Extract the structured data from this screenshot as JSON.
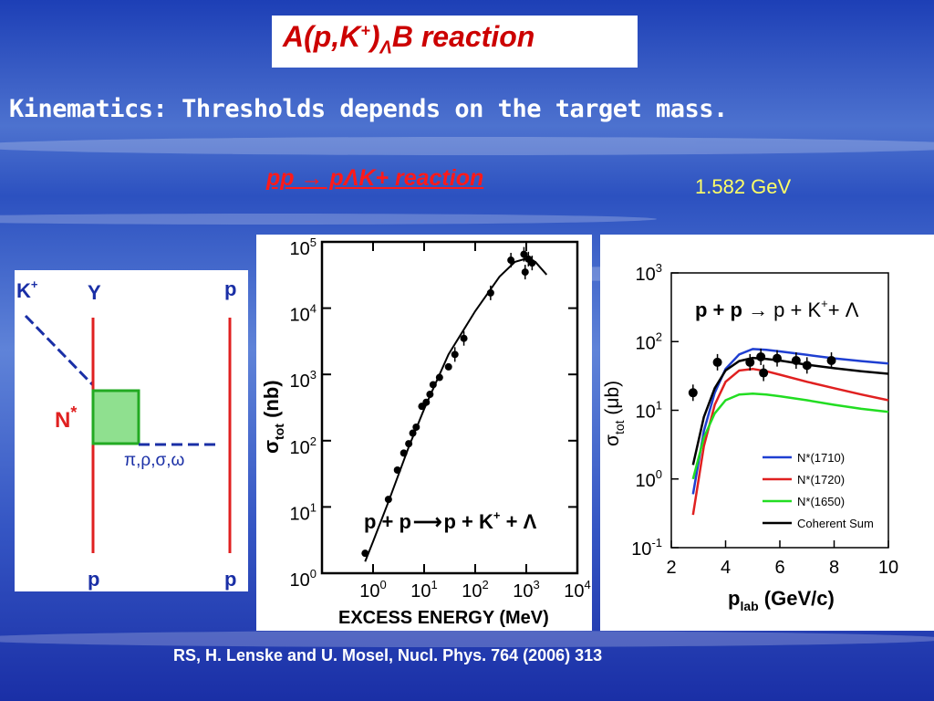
{
  "slide": {
    "title_main": "A(p,K",
    "title_sup": "+",
    "title_close": ")",
    "title_sub": "Λ",
    "title_end": "B reaction",
    "subtitle": "Kinematics: Thresholds  depends on  the target mass.",
    "reaction_label": "pp  → pΛK+   reaction",
    "threshold_energy": "1.582 GeV",
    "citation": "RS, H. Lenske and U. Mosel, Nucl. Phys. 764 (2006) 313"
  },
  "diagram": {
    "kplus": "K",
    "kplus_sup": "+",
    "y_label": "Y",
    "p_top_right": "p",
    "nstar": "N",
    "nstar_sup": "*",
    "mesons": "π,ρ,σ,ω",
    "p_bottom_left": "p",
    "p_bottom_right": "p"
  },
  "chart_data": [
    {
      "type": "scatter",
      "scale": "log-log",
      "annotation": "p + p→p + K+ + Λ",
      "xlabel": "EXCESS ENERGY (MeV)",
      "ylabel": "σtot (nb)",
      "xlim": [
        0.1,
        10000
      ],
      "ylim": [
        1,
        100000
      ],
      "x_ticks": [
        "10^0",
        "10^1",
        "10^2",
        "10^3",
        "10^4"
      ],
      "y_ticks": [
        "10^0",
        "10^1",
        "10^2",
        "10^3",
        "10^4",
        "10^5"
      ],
      "points": [
        {
          "x": 0.7,
          "y": 2.0
        },
        {
          "x": 2.0,
          "y": 13
        },
        {
          "x": 3.0,
          "y": 36
        },
        {
          "x": 4.0,
          "y": 65
        },
        {
          "x": 5.0,
          "y": 90
        },
        {
          "x": 6.0,
          "y": 130
        },
        {
          "x": 7.0,
          "y": 160
        },
        {
          "x": 9.0,
          "y": 330
        },
        {
          "x": 11,
          "y": 380
        },
        {
          "x": 13,
          "y": 500
        },
        {
          "x": 15,
          "y": 700
        },
        {
          "x": 20,
          "y": 900
        },
        {
          "x": 30,
          "y": 1300
        },
        {
          "x": 40,
          "y": 2000
        },
        {
          "x": 60,
          "y": 3500
        },
        {
          "x": 200,
          "y": 17000
        },
        {
          "x": 500,
          "y": 53000
        },
        {
          "x": 900,
          "y": 65000
        },
        {
          "x": 950,
          "y": 35000
        },
        {
          "x": 1100,
          "y": 55000
        },
        {
          "x": 1300,
          "y": 48000
        }
      ],
      "fit_curve": [
        {
          "x": 0.7,
          "y": 1.5
        },
        {
          "x": 1,
          "y": 3
        },
        {
          "x": 2,
          "y": 12
        },
        {
          "x": 5,
          "y": 80
        },
        {
          "x": 10,
          "y": 300
        },
        {
          "x": 30,
          "y": 2000
        },
        {
          "x": 100,
          "y": 9000
        },
        {
          "x": 300,
          "y": 30000
        },
        {
          "x": 600,
          "y": 50000
        },
        {
          "x": 1000,
          "y": 56000
        },
        {
          "x": 1500,
          "y": 50000
        },
        {
          "x": 2500,
          "y": 32000
        }
      ]
    },
    {
      "type": "line",
      "scale": "x-linear-y-log",
      "annotation": "p + p → p + K+ + Λ",
      "xlabel": "plab (GeV/c)",
      "ylabel": "σtot (μb)",
      "xlim": [
        2,
        10
      ],
      "ylim": [
        0.1,
        1000
      ],
      "x_ticks": [
        "2",
        "4",
        "6",
        "8",
        "10"
      ],
      "y_ticks": [
        "10^-1",
        "10^0",
        "10^1",
        "10^2",
        "10^3"
      ],
      "series": [
        {
          "name": "N*(1710)",
          "color": "#1f3fd1",
          "x": [
            2.8,
            3.2,
            3.6,
            4.0,
            4.5,
            5.0,
            5.5,
            6.0,
            7.0,
            8.0,
            9.0,
            10.0
          ],
          "y": [
            0.6,
            5,
            18,
            40,
            65,
            78,
            76,
            72,
            64,
            57,
            52,
            48
          ]
        },
        {
          "name": "N*(1720)",
          "color": "#e02020",
          "x": [
            2.8,
            3.2,
            3.6,
            4.0,
            4.5,
            5.0,
            5.5,
            6.0,
            7.0,
            8.0,
            9.0,
            10.0
          ],
          "y": [
            0.3,
            3,
            12,
            26,
            38,
            40,
            37,
            33,
            26,
            21,
            17,
            14
          ]
        },
        {
          "name": "N*(1650)",
          "color": "#22dd22",
          "x": [
            2.8,
            3.2,
            3.6,
            4.0,
            4.5,
            5.0,
            5.5,
            6.0,
            7.0,
            8.0,
            9.0,
            10.0
          ],
          "y": [
            1.0,
            4,
            9,
            14,
            17,
            17.5,
            17,
            16,
            14,
            12,
            10.5,
            9.5
          ]
        },
        {
          "name": "Coherent Sum",
          "color": "#000000",
          "x": [
            2.8,
            3.2,
            3.6,
            4.0,
            4.5,
            5.0,
            5.5,
            6.0,
            7.0,
            8.0,
            9.0,
            10.0
          ],
          "y": [
            1.6,
            8,
            21,
            38,
            52,
            58,
            56,
            53,
            46,
            41,
            37,
            34
          ]
        }
      ],
      "points": [
        {
          "x": 2.8,
          "y": 18
        },
        {
          "x": 3.7,
          "y": 50
        },
        {
          "x": 4.9,
          "y": 50
        },
        {
          "x": 5.3,
          "y": 60
        },
        {
          "x": 5.4,
          "y": 35
        },
        {
          "x": 5.9,
          "y": 57
        },
        {
          "x": 6.6,
          "y": 53
        },
        {
          "x": 7.0,
          "y": 45
        },
        {
          "x": 7.9,
          "y": 53
        }
      ]
    }
  ]
}
